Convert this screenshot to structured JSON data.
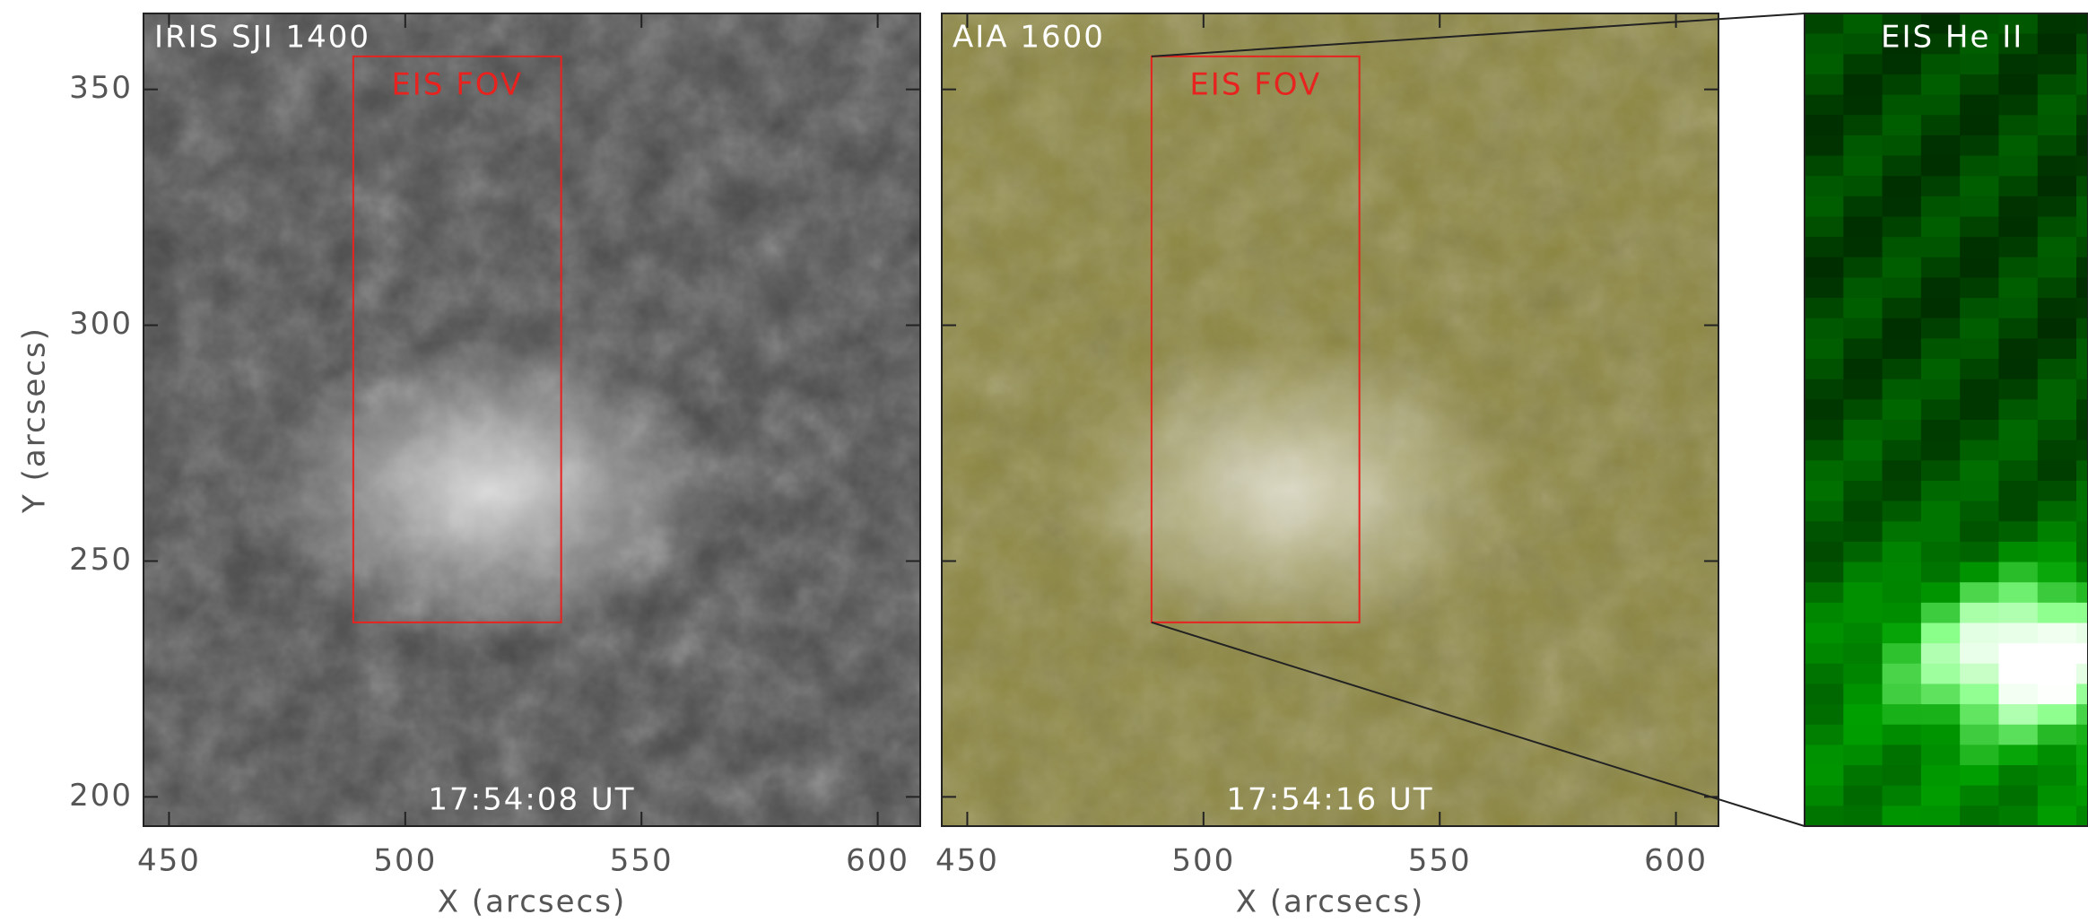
{
  "chart_data": [
    {
      "type": "image",
      "title": "IRIS SJI 1400",
      "timestamp": "17:54:08 UT",
      "x_label": "X (arcsecs)",
      "y_label": "Y (arcsecs)",
      "xlim": [
        444.6,
        609
      ],
      "ylim": [
        193.8,
        366.1
      ],
      "xticks": [
        450,
        500,
        550,
        600
      ],
      "yticks": [
        200,
        250,
        300,
        350
      ],
      "ytick_labels": true,
      "colormap": "gray",
      "box": {
        "label": "EIS FOV",
        "x": [
          489,
          533
        ],
        "y": [
          237,
          357
        ],
        "color": "#e8221e"
      }
    },
    {
      "type": "image",
      "title": "AIA 1600",
      "timestamp": "17:54:16 UT",
      "x_label": "X (arcsecs)",
      "xlim": [
        444.6,
        609
      ],
      "ylim": [
        193.8,
        366.1
      ],
      "xticks": [
        450,
        500,
        550,
        600
      ],
      "yticks": [
        200,
        250,
        300,
        350
      ],
      "ytick_labels": false,
      "colormap": "olive",
      "box": {
        "label": "EIS FOV",
        "x": [
          489,
          533
        ],
        "y": [
          237,
          357
        ],
        "color": "#e8221e"
      }
    },
    {
      "type": "image",
      "title": "EIS He II",
      "colormap": "green",
      "zoom_from": 1
    }
  ]
}
